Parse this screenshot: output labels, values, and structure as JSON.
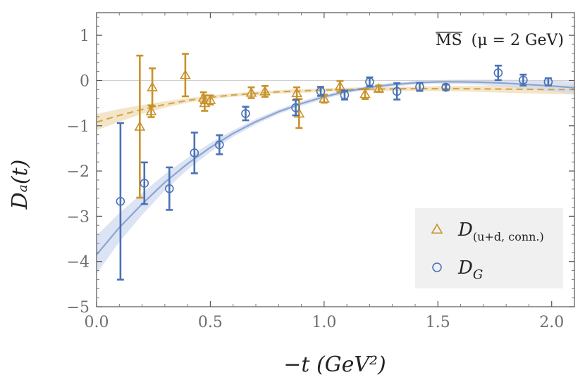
{
  "chart_data": {
    "type": "scatter",
    "title": "",
    "xlabel": "−t (GeV²)",
    "ylabel": "Dₐ(t)",
    "xlim": [
      0.0,
      2.1
    ],
    "ylim": [
      -5,
      1.5
    ],
    "xticks": [
      0.0,
      0.5,
      1.0,
      1.5,
      2.0
    ],
    "xtick_labels": [
      "0.0",
      "0.5",
      "1.0",
      "1.5",
      "2.0"
    ],
    "yticks": [
      -5,
      -4,
      -3,
      -2,
      -1,
      0,
      1
    ],
    "ytick_labels": [
      "−5",
      "−4",
      "−3",
      "−2",
      "−1",
      "0",
      "1"
    ],
    "annotation": "MS (μ = 2 GeV)",
    "annotation_overline": "MS",
    "annotation_rest": "(μ = 2 GeV)",
    "legend_position": "lower-right",
    "colors": {
      "orange": "#c8922a",
      "blue": "#4a72b5",
      "orange_band": "#f0dcb6",
      "blue_band": "#cfdaf0"
    },
    "series": [
      {
        "name": "D(u+d, conn.)",
        "legend_main": "D",
        "legend_sub": "(u+d, conn.)",
        "marker": "triangle",
        "color": "#c8922a",
        "points": [
          {
            "x": 0.19,
            "y": -1.02,
            "err": 1.57
          },
          {
            "x": 0.24,
            "y": -0.68,
            "err": 0.13
          },
          {
            "x": 0.245,
            "y": -0.15,
            "err": 0.42
          },
          {
            "x": 0.39,
            "y": 0.12,
            "err": 0.47
          },
          {
            "x": 0.47,
            "y": -0.38,
            "err": 0.12
          },
          {
            "x": 0.475,
            "y": -0.5,
            "err": 0.17
          },
          {
            "x": 0.5,
            "y": -0.43,
            "err": 0.1
          },
          {
            "x": 0.68,
            "y": -0.27,
            "err": 0.12
          },
          {
            "x": 0.74,
            "y": -0.24,
            "err": 0.12
          },
          {
            "x": 0.88,
            "y": -0.28,
            "err": 0.13
          },
          {
            "x": 0.89,
            "y": -0.73,
            "err": 0.32
          },
          {
            "x": 1.0,
            "y": -0.4,
            "err": 0.09
          },
          {
            "x": 1.07,
            "y": -0.13,
            "err": 0.12
          },
          {
            "x": 1.18,
            "y": -0.3,
            "err": 0.11
          },
          {
            "x": 1.24,
            "y": -0.18,
            "err": 0.07
          }
        ],
        "fit": {
          "x": [
            0.0,
            0.1,
            0.2,
            0.3,
            0.4,
            0.5,
            0.6,
            0.8,
            1.0,
            1.2,
            1.4,
            1.6,
            1.8,
            2.0,
            2.1
          ],
          "y": [
            -0.92,
            -0.77,
            -0.64,
            -0.53,
            -0.44,
            -0.37,
            -0.32,
            -0.25,
            -0.21,
            -0.19,
            -0.18,
            -0.18,
            -0.19,
            -0.2,
            -0.2
          ],
          "band": [
            0.18,
            0.14,
            0.1,
            0.07,
            0.05,
            0.04,
            0.04,
            0.04,
            0.04,
            0.04,
            0.05,
            0.06,
            0.08,
            0.1,
            0.11
          ]
        }
      },
      {
        "name": "DG",
        "legend_main": "D",
        "legend_sub": "G",
        "marker": "circle",
        "color": "#4a72b5",
        "points": [
          {
            "x": 0.105,
            "y": -2.67,
            "err": 1.73
          },
          {
            "x": 0.21,
            "y": -2.27,
            "err": 0.46
          },
          {
            "x": 0.32,
            "y": -2.39,
            "err": 0.47
          },
          {
            "x": 0.43,
            "y": -1.6,
            "err": 0.45
          },
          {
            "x": 0.54,
            "y": -1.42,
            "err": 0.21
          },
          {
            "x": 0.655,
            "y": -0.73,
            "err": 0.15
          },
          {
            "x": 0.875,
            "y": -0.6,
            "err": 0.17
          },
          {
            "x": 0.985,
            "y": -0.24,
            "err": 0.1
          },
          {
            "x": 1.09,
            "y": -0.32,
            "err": 0.1
          },
          {
            "x": 1.2,
            "y": -0.03,
            "err": 0.1
          },
          {
            "x": 1.32,
            "y": -0.24,
            "err": 0.18
          },
          {
            "x": 1.42,
            "y": -0.14,
            "err": 0.09
          },
          {
            "x": 1.535,
            "y": -0.15,
            "err": 0.06
          },
          {
            "x": 1.765,
            "y": 0.17,
            "err": 0.16
          },
          {
            "x": 1.875,
            "y": 0.01,
            "err": 0.12
          },
          {
            "x": 1.985,
            "y": -0.03,
            "err": 0.08
          }
        ],
        "fit": {
          "x": [
            0.0,
            0.1,
            0.2,
            0.3,
            0.4,
            0.5,
            0.6,
            0.7,
            0.8,
            0.9,
            1.0,
            1.1,
            1.2,
            1.3,
            1.4,
            1.5,
            1.6,
            1.7,
            1.8,
            1.9,
            2.0,
            2.1
          ],
          "y": [
            -3.85,
            -3.25,
            -2.73,
            -2.25,
            -1.84,
            -1.48,
            -1.17,
            -0.91,
            -0.69,
            -0.51,
            -0.36,
            -0.24,
            -0.15,
            -0.09,
            -0.05,
            -0.03,
            -0.03,
            -0.04,
            -0.06,
            -0.09,
            -0.12,
            -0.16
          ],
          "band": [
            0.42,
            0.32,
            0.24,
            0.18,
            0.13,
            0.1,
            0.07,
            0.06,
            0.05,
            0.05,
            0.05,
            0.04,
            0.04,
            0.04,
            0.04,
            0.04,
            0.05,
            0.06,
            0.08,
            0.1,
            0.12,
            0.14
          ]
        }
      }
    ]
  }
}
